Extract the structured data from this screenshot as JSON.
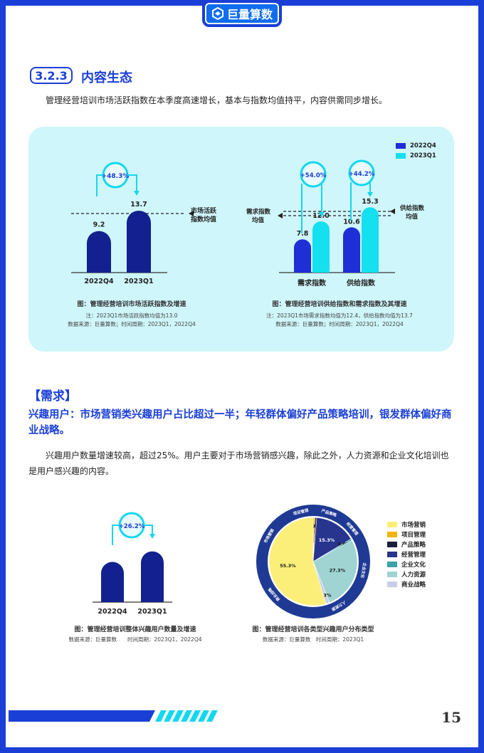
{
  "header": {
    "brand": "巨量算数"
  },
  "section": {
    "number": "3.2.3",
    "title": "内容生态"
  },
  "intro": "管理经营培训市场活跃指数在本季度高速增长，基本与指数均值持平，内容供需同步增长。",
  "chart_activity": {
    "type": "bar",
    "categories": [
      "2022Q4",
      "2023Q1"
    ],
    "values": [
      9.2,
      13.7
    ],
    "value_labels": [
      "9.2",
      "13.7"
    ],
    "growth": "+48.3%",
    "mean_label_1": "市场活跃",
    "mean_label_2": "指数均值",
    "mean_value": 13.0,
    "caption": "图：管理经营培训市场活跃指数及增速",
    "note": "注：2023Q1市场活跃指数均值为13.0",
    "source": "数据来源：巨量算数；时间周期：2023Q1，2022Q4",
    "colors": {
      "bar": "#12218f",
      "mean": "#222222"
    }
  },
  "chart_supply": {
    "type": "bar",
    "categories": [
      "需求指数",
      "供给指数"
    ],
    "series": [
      {
        "name": "2022Q4",
        "values": [
          7.8,
          10.6
        ],
        "labels": [
          "7.8",
          "10.6"
        ],
        "color": "#1f2fd6"
      },
      {
        "name": "2023Q1",
        "values": [
          12.0,
          15.3
        ],
        "labels": [
          "12.0",
          "15.3"
        ],
        "color": "#14e0f0"
      }
    ],
    "growth": [
      "+54.0%",
      "+44.2%"
    ],
    "demand_mean_label_1": "需求指数",
    "demand_mean_label_2": "均值",
    "demand_mean": 12.4,
    "supply_mean_label_1": "供给指数",
    "supply_mean_label_2": "均值",
    "supply_mean": 13.7,
    "caption": "图：管理经营培训供给指数和需求指数及其增速",
    "note": "注：2023Q1市场需求指数均值为12.4，供给指数均值为13.7",
    "source": "数据来源：巨量算数；时间周期：2023Q1，2022Q4"
  },
  "demand": {
    "bracket": "【需求】",
    "headline": "兴趣用户：市场营销类兴趣用户占比超过一半；年轻群体偏好产品策略培训，银发群体偏好商业战略。",
    "body": "兴趣用户数量增速较高，超过25%。用户主要对于市场营销感兴趣，除此之外，人力资源和企业文化培训也是用户感兴趣的内容。"
  },
  "chart_users": {
    "type": "bar",
    "categories": [
      "2022Q4",
      "2023Q1"
    ],
    "values": [
      100,
      126.2
    ],
    "growth": "+26.2%",
    "caption": "图：管理经营培训整体兴趣用户数量及增速",
    "source": "数据来源：巨量算数　　时间周期：2023Q1，2022Q4",
    "colors": {
      "bar": "#12218f"
    }
  },
  "chart_pie": {
    "type": "pie",
    "slices": [
      {
        "name": "市场营销",
        "value": 55.3,
        "label": "55.3%",
        "color": "#fbef7a"
      },
      {
        "name": "项目管理",
        "value": 0.7,
        "label": "0.7%",
        "color": "#f2b50c"
      },
      {
        "name": "产品策略",
        "value": 0.6,
        "label": "0.6%",
        "color": "#1b1f3d"
      },
      {
        "name": "经营管理",
        "value": 15.3,
        "label": "15.3%",
        "color": "#27358f"
      },
      {
        "name": "企业文化",
        "value": 0.6,
        "label": "0.6%",
        "color": "#39a3a8"
      },
      {
        "name": "人力资源",
        "value": 27.3,
        "label": "27.3%",
        "color": "#9fd4d2"
      },
      {
        "name": "商业战略",
        "value": 1.3,
        "label": "1.3%",
        "color": "#c9cde8"
      }
    ],
    "ring_labels": [
      "项目管理",
      "产品策略",
      "经营管理",
      "企业文化",
      "人力资源",
      "商业战略",
      "市场营销"
    ],
    "caption": "图：管理经营培训各类型兴趣用户分布类型",
    "source": "数据来源：巨量算数　时间周期：2023Q1"
  },
  "footer": {
    "page": "15"
  }
}
